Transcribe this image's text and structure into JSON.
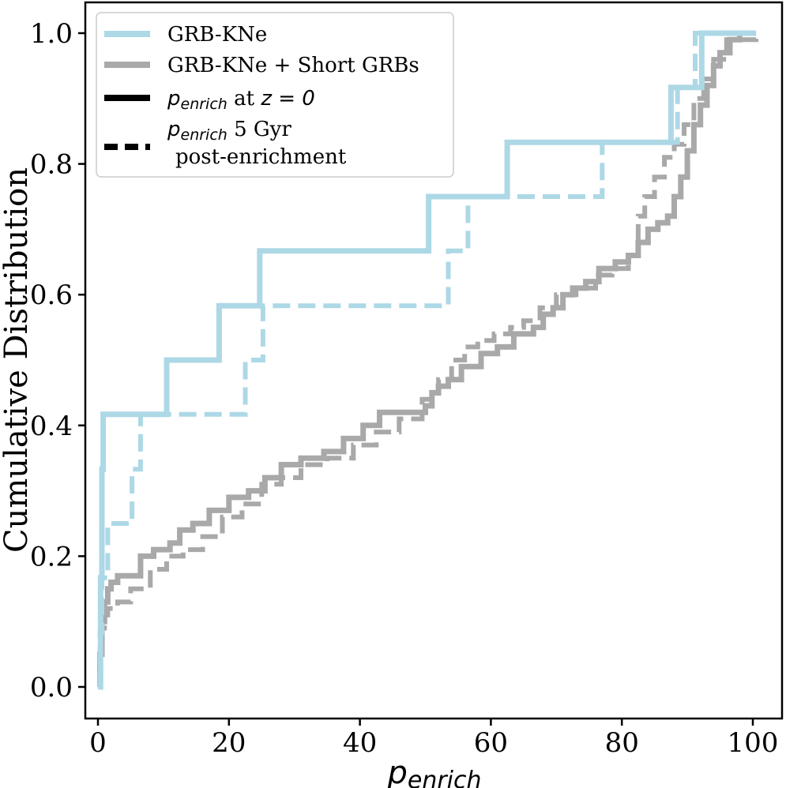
{
  "chart_data": {
    "type": "line",
    "title": "",
    "xlabel": "p_enrich",
    "xlabel_main": "p",
    "xlabel_sub": "enrich",
    "ylabel": "Cumulative Distribution",
    "xlim": [
      -2,
      105
    ],
    "ylim": [
      -0.05,
      1.05
    ],
    "xticks": [
      0,
      20,
      40,
      60,
      80,
      100
    ],
    "yticks": [
      0.0,
      0.2,
      0.4,
      0.6,
      0.8,
      1.0
    ],
    "xtick_labels": [
      "0",
      "20",
      "40",
      "60",
      "80",
      "100"
    ],
    "ytick_labels": [
      "0.0",
      "0.2",
      "0.4",
      "0.6",
      "0.8",
      "1.0"
    ],
    "legend": {
      "placement": "top-left",
      "entries": [
        {
          "label": "GRB-KNe",
          "color": "#add8e6",
          "style": "solid"
        },
        {
          "label": "GRB-KNe + Short GRBs",
          "color": "#a9a9a9",
          "style": "solid"
        },
        {
          "label_main": "p",
          "label_sub": "enrich",
          "label_rest": " at z = 0",
          "label_rest_pre": " at ",
          "label_rest_z": "z",
          "label_rest_post": " = 0",
          "color": "#000000",
          "style": "solid"
        },
        {
          "label_main": "p",
          "label_sub": "enrich",
          "label_rest": " 5 Gyr",
          "label_line2": "post-enrichment",
          "color": "#000000",
          "style": "dashed"
        }
      ]
    },
    "series": [
      {
        "name": "GRB-KNe (z = 0)",
        "color": "#add8e6",
        "style": "solid",
        "x": [
          0,
          0.4,
          0.6,
          0.8,
          10.5,
          18.5,
          24.7,
          50.5,
          62.5,
          87.5,
          92.2,
          100.5
        ],
        "y": [
          0.0,
          0.167,
          0.333,
          0.417,
          0.5,
          0.583,
          0.667,
          0.75,
          0.833,
          0.917,
          1.0,
          1.0
        ]
      },
      {
        "name": "GRB-KNe (5 Gyr post-enrichment)",
        "color": "#add8e6",
        "style": "dashed",
        "x": [
          0,
          0.3,
          0.6,
          1.5,
          5.2,
          6.5,
          22.5,
          25.2,
          53.5,
          56.5,
          77.0,
          88.5,
          91.2,
          100.5
        ],
        "y": [
          0.0,
          0.083,
          0.167,
          0.25,
          0.333,
          0.417,
          0.5,
          0.583,
          0.667,
          0.75,
          0.833,
          0.917,
          1.0,
          1.0
        ]
      },
      {
        "name": "GRB-KNe + Short GRBs (z = 0)",
        "color": "#a9a9a9",
        "style": "solid",
        "x": [
          0,
          0.3,
          0.6,
          1.0,
          1.5,
          2.0,
          3.0,
          4.5,
          6.5,
          8.5,
          11.0,
          12.5,
          14.5,
          17.0,
          20.0,
          23.0,
          25.5,
          28.0,
          31.0,
          34.5,
          37.5,
          40.5,
          43.0,
          50.0,
          51.0,
          52.0,
          53.5,
          55.5,
          58.5,
          61.0,
          63.5,
          66.5,
          68.0,
          69.5,
          71.0,
          72.5,
          74.5,
          76.5,
          79.0,
          81.0,
          82.5,
          84.0,
          85.5,
          87.0,
          88.0,
          89.0,
          90.0,
          91.0,
          92.0,
          93.0,
          94.0,
          95.0,
          96.5,
          98.0,
          100.5
        ],
        "y": [
          0.0,
          0.05,
          0.1,
          0.13,
          0.15,
          0.16,
          0.17,
          0.17,
          0.2,
          0.21,
          0.22,
          0.24,
          0.25,
          0.27,
          0.29,
          0.3,
          0.32,
          0.34,
          0.35,
          0.36,
          0.38,
          0.4,
          0.42,
          0.43,
          0.45,
          0.46,
          0.47,
          0.49,
          0.51,
          0.52,
          0.54,
          0.55,
          0.57,
          0.58,
          0.6,
          0.61,
          0.62,
          0.64,
          0.65,
          0.66,
          0.68,
          0.7,
          0.71,
          0.72,
          0.75,
          0.78,
          0.82,
          0.86,
          0.89,
          0.92,
          0.95,
          0.97,
          0.99,
          1.0,
          1.0
        ]
      },
      {
        "name": "GRB-KNe + Short GRBs (5 Gyr post-enrichment)",
        "color": "#a9a9a9",
        "style": "dashed",
        "x": [
          0,
          0.3,
          0.6,
          1.0,
          1.5,
          3.0,
          5.0,
          8.0,
          10.5,
          13.0,
          16.0,
          19.0,
          22.0,
          25.0,
          28.0,
          31.0,
          35.0,
          39.0,
          42.5,
          46.0,
          49.5,
          52.0,
          54.0,
          56.0,
          58.0,
          60.5,
          63.0,
          65.0,
          67.5,
          70.0,
          73.0,
          76.0,
          78.5,
          81.0,
          82.5,
          83.5,
          85.0,
          86.5,
          88.0,
          89.5,
          91.0,
          92.5,
          94.0,
          96.0,
          100.5
        ],
        "y": [
          0.0,
          0.05,
          0.09,
          0.11,
          0.12,
          0.13,
          0.15,
          0.18,
          0.2,
          0.21,
          0.23,
          0.26,
          0.28,
          0.31,
          0.32,
          0.34,
          0.35,
          0.37,
          0.39,
          0.41,
          0.44,
          0.47,
          0.5,
          0.52,
          0.53,
          0.54,
          0.55,
          0.56,
          0.58,
          0.6,
          0.61,
          0.63,
          0.64,
          0.66,
          0.72,
          0.75,
          0.78,
          0.81,
          0.83,
          0.86,
          0.9,
          0.93,
          0.96,
          0.99,
          1.0
        ]
      }
    ]
  }
}
